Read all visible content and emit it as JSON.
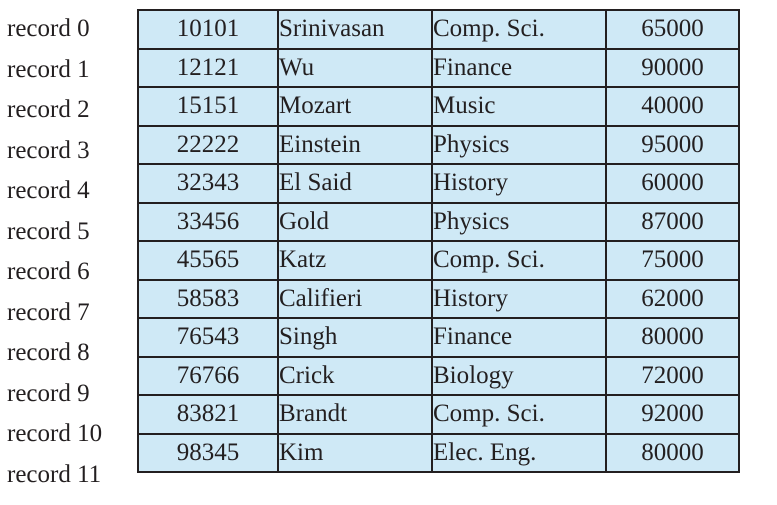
{
  "records": [
    {
      "label": "record 0",
      "id": "10101",
      "name": "Srinivasan",
      "dept": "Comp. Sci.",
      "salary": "65000"
    },
    {
      "label": "record 1",
      "id": "12121",
      "name": "Wu",
      "dept": "Finance",
      "salary": "90000"
    },
    {
      "label": "record 2",
      "id": "15151",
      "name": "Mozart",
      "dept": "Music",
      "salary": "40000"
    },
    {
      "label": "record 3",
      "id": "22222",
      "name": "Einstein",
      "dept": "Physics",
      "salary": "95000"
    },
    {
      "label": "record 4",
      "id": "32343",
      "name": "El Said",
      "dept": "History",
      "salary": "60000"
    },
    {
      "label": "record 5",
      "id": "33456",
      "name": "Gold",
      "dept": "Physics",
      "salary": "87000"
    },
    {
      "label": "record 6",
      "id": "45565",
      "name": "Katz",
      "dept": "Comp. Sci.",
      "salary": "75000"
    },
    {
      "label": "record 7",
      "id": "58583",
      "name": "Califieri",
      "dept": "History",
      "salary": "62000"
    },
    {
      "label": "record 8",
      "id": "76543",
      "name": "Singh",
      "dept": "Finance",
      "salary": "80000"
    },
    {
      "label": "record 9",
      "id": "76766",
      "name": "Crick",
      "dept": "Biology",
      "salary": "72000"
    },
    {
      "label": "record 10",
      "id": "83821",
      "name": "Brandt",
      "dept": "Comp. Sci.",
      "salary": "92000"
    },
    {
      "label": "record 11",
      "id": "98345",
      "name": "Kim",
      "dept": "Elec. Eng.",
      "salary": "80000"
    }
  ],
  "colors": {
    "cell_fill": "#cfe9f6",
    "border": "#231f20",
    "text": "#231f20"
  }
}
